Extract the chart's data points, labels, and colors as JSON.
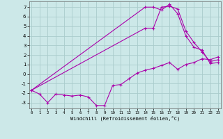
{
  "bg_color": "#cce8e8",
  "grid_color": "#aacccc",
  "line_color": "#aa00aa",
  "xlabel": "Windchill (Refroidissement éolien,°C)",
  "x_ticks": [
    0,
    1,
    2,
    3,
    4,
    5,
    6,
    7,
    8,
    9,
    10,
    11,
    12,
    13,
    14,
    15,
    16,
    17,
    18,
    19,
    20,
    21,
    22,
    23
  ],
  "y_ticks": [
    -3,
    -2,
    -1,
    0,
    1,
    2,
    3,
    4,
    5,
    6,
    7
  ],
  "xlim": [
    -0.3,
    23.3
  ],
  "ylim": [
    -3.6,
    7.6
  ],
  "line1_x": [
    0,
    1,
    2,
    3,
    4,
    5,
    6,
    7,
    8,
    9,
    10,
    11,
    12,
    13,
    14,
    15,
    16,
    17,
    18,
    19,
    20,
    21,
    22,
    23
  ],
  "line1_y": [
    -1.7,
    -2.1,
    -3.0,
    -2.1,
    -2.2,
    -2.3,
    -2.2,
    -2.4,
    -3.3,
    -3.3,
    -1.2,
    -1.1,
    -0.5,
    0.1,
    0.4,
    0.6,
    0.9,
    1.2,
    0.5,
    1.0,
    1.2,
    1.6,
    1.5,
    1.8
  ],
  "line2_x": [
    0,
    14,
    15,
    16,
    17,
    18,
    19,
    20,
    21,
    22,
    23
  ],
  "line2_y": [
    -1.7,
    7.0,
    7.0,
    6.7,
    7.3,
    6.3,
    4.0,
    2.8,
    2.5,
    1.1,
    1.2
  ],
  "line3_x": [
    0,
    14,
    15,
    16,
    17,
    18,
    19,
    20,
    21,
    22,
    23
  ],
  "line3_y": [
    -1.7,
    4.8,
    4.8,
    7.0,
    7.1,
    6.8,
    4.5,
    3.3,
    2.3,
    1.3,
    1.5
  ]
}
